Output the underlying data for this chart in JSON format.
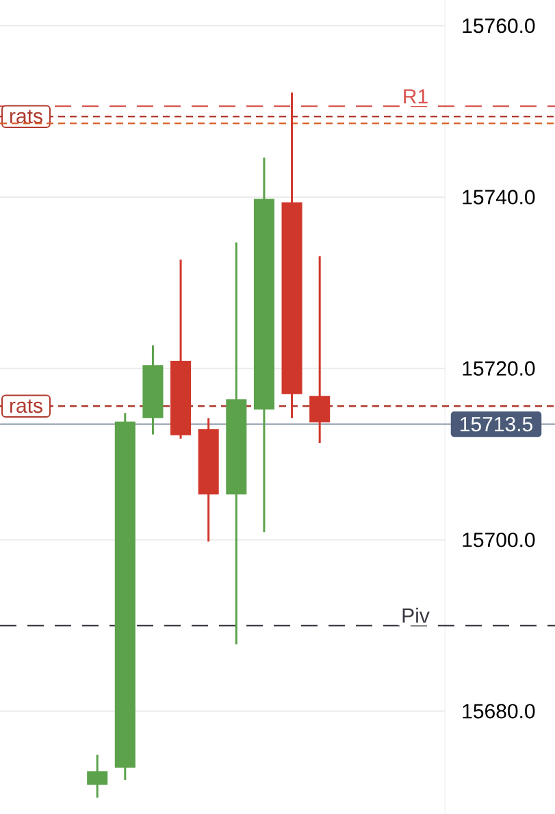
{
  "chart_data": {
    "type": "candlestick",
    "categories": [
      null,
      null,
      null,
      null,
      null,
      null,
      null,
      null,
      null,
      null,
      null,
      null,
      null,
      null,
      null,
      null
    ],
    "ohlc": [
      null,
      null,
      null,
      [
        15671.4,
        15674.9,
        15669.9,
        15673.0
      ],
      [
        15673.4,
        15714.8,
        15672.0,
        15713.8
      ],
      [
        15714.2,
        15722.7,
        15712.3,
        15720.4
      ],
      [
        15720.9,
        15732.7,
        15711.8,
        15712.2
      ],
      [
        15712.9,
        15714.2,
        15699.8,
        15705.3
      ],
      [
        15705.3,
        15734.7,
        15687.8,
        15716.4
      ],
      [
        15715.2,
        15744.6,
        15700.9,
        15739.8
      ],
      [
        15739.4,
        15752.2,
        15714.2,
        15717.0
      ],
      [
        15716.8,
        15733.1,
        15711.3,
        15713.7
      ],
      null,
      null,
      null,
      null
    ],
    "colors": [
      null,
      null,
      null,
      "#5ba24b",
      "#5ba24b",
      "#5ba24b",
      "#d0372b",
      "#d0372b",
      "#5ba24b",
      "#5ba24b",
      "#d0372b",
      "#d0372b",
      null,
      null,
      null,
      null
    ],
    "ylim": [
      15668,
      15763
    ],
    "yticks": [
      {
        "value": 15680,
        "label": "15680.0"
      },
      {
        "value": 15700,
        "label": "15700.0"
      },
      {
        "value": 15720,
        "label": "15720.0"
      },
      {
        "value": 15740,
        "label": "15740.0"
      },
      {
        "value": 15760,
        "label": "15760.0"
      }
    ],
    "grid": "y",
    "ref_lines": [
      {
        "axis": "y",
        "value": 15750.6,
        "label": "R1",
        "color": "#d9534f",
        "line_style": "dashed"
      },
      {
        "axis": "y",
        "value": 15749.4,
        "label": "rats",
        "color": "#b03a2e",
        "line_style": "dotted"
      },
      {
        "axis": "y",
        "value": 15748.6,
        "color": "#d9622b",
        "line_style": "dotted"
      },
      {
        "axis": "y",
        "value": 15715.6,
        "label": "rats",
        "color": "#b03a2e",
        "line_style": "dotted"
      },
      {
        "axis": "y",
        "value": 15713.5,
        "label": "15713.5",
        "color": "#9aa5b4",
        "line_style": "solid"
      },
      {
        "axis": "y",
        "value": 15690.0,
        "label": "Piv",
        "color": "#3a3a44",
        "line_style": "dashed"
      }
    ]
  }
}
